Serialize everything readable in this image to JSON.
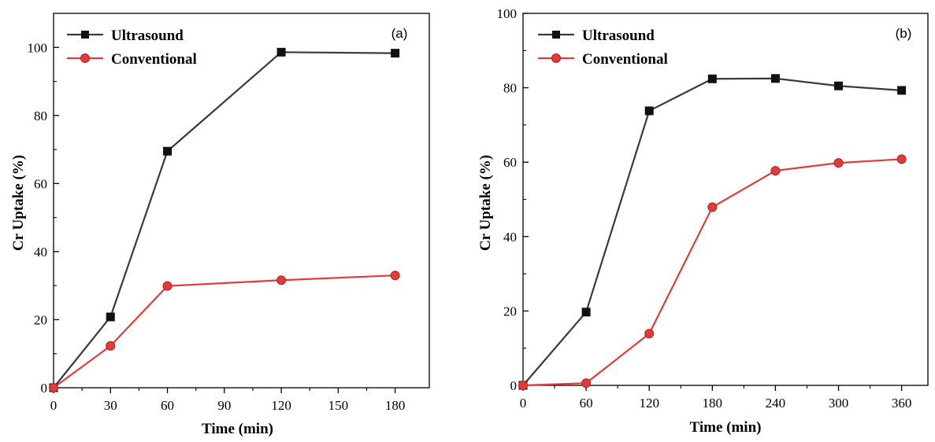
{
  "chart_data": [
    {
      "type": "line",
      "panel_label": "(a)",
      "xlabel": "Time (min)",
      "ylabel": "Cr Uptake (%)",
      "xlim": [
        0,
        198
      ],
      "ylim": [
        0,
        110
      ],
      "xticks": [
        0,
        30,
        60,
        90,
        120,
        150,
        180
      ],
      "yticks": [
        0,
        20,
        40,
        60,
        80,
        100
      ],
      "legend_position": "top-left",
      "series": [
        {
          "name": "Ultrasound",
          "color": "#3a3a3a",
          "marker": "square",
          "x": [
            0,
            30,
            60,
            120,
            180
          ],
          "y": [
            0,
            20.8,
            69.5,
            98.6,
            98.3
          ]
        },
        {
          "name": "Conventional",
          "color": "#e03c3c",
          "marker": "circle",
          "x": [
            0,
            30,
            60,
            120,
            180
          ],
          "y": [
            0,
            12.3,
            29.9,
            31.6,
            33.0
          ]
        }
      ]
    },
    {
      "type": "line",
      "panel_label": "(b)",
      "xlabel": "Time (min)",
      "ylabel": "Cr Uptake (%)",
      "xlim": [
        0,
        385
      ],
      "ylim": [
        0,
        100
      ],
      "xticks": [
        0,
        60,
        120,
        180,
        240,
        300,
        360
      ],
      "yticks": [
        0,
        20,
        40,
        60,
        80,
        100
      ],
      "legend_position": "top-left",
      "series": [
        {
          "name": "Ultrasound",
          "color": "#3a3a3a",
          "marker": "square",
          "x": [
            0,
            60,
            120,
            180,
            240,
            300,
            360
          ],
          "y": [
            0,
            19.7,
            73.8,
            82.4,
            82.5,
            80.5,
            79.3
          ]
        },
        {
          "name": "Conventional",
          "color": "#e03c3c",
          "marker": "circle",
          "x": [
            0,
            60,
            120,
            180,
            240,
            300,
            360
          ],
          "y": [
            0,
            0.6,
            13.9,
            47.9,
            57.7,
            59.8,
            60.8
          ]
        }
      ]
    }
  ]
}
